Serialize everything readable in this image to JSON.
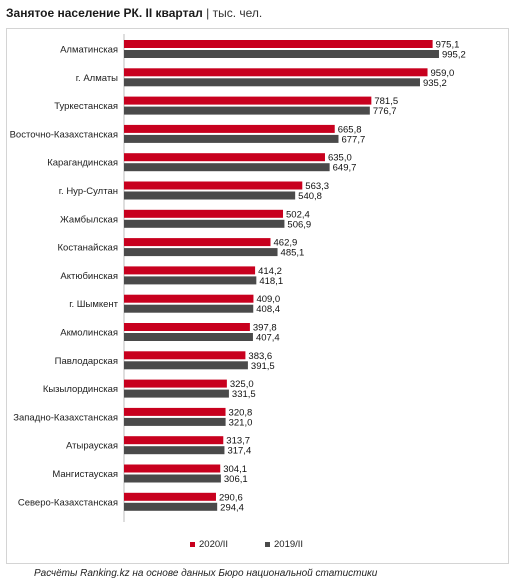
{
  "title": {
    "main": "Занятое население РК. II квартал",
    "separator": "|",
    "unit": "тыс. чел."
  },
  "source": "Расчёты Ranking.kz на основе данных Бюро национальной статистики",
  "colors": {
    "series_2020": "#c8001e",
    "series_2019": "#4a4a4a"
  },
  "chart_data": {
    "type": "bar",
    "orientation": "horizontal",
    "categories": [
      "Алматинская",
      "г. Алматы",
      "Туркестанская",
      "Восточно-Казахстанская",
      "Карагандинская",
      "г. Нур-Султан",
      "Жамбылская",
      "Костанайская",
      "Актюбинская",
      "г. Шымкент",
      "Акмолинская",
      "Павлодарская",
      "Кызылординская",
      "Западно-Казахстанская",
      "Атырауская",
      "Мангистауская",
      "Северо-Казахстанская"
    ],
    "series": [
      {
        "name": "2020/II",
        "values": [
          975.1,
          959.0,
          781.5,
          665.8,
          635.0,
          563.3,
          502.4,
          462.9,
          414.2,
          409.0,
          397.8,
          383.6,
          325.0,
          320.8,
          313.7,
          304.1,
          290.6
        ]
      },
      {
        "name": "2019/II",
        "values": [
          995.2,
          935.2,
          776.7,
          677.7,
          649.7,
          540.8,
          506.9,
          485.1,
          418.1,
          408.4,
          407.4,
          391.5,
          331.5,
          321.0,
          317.4,
          306.1,
          294.4
        ]
      }
    ],
    "value_labels": [
      [
        "975,1",
        "959,0",
        "781,5",
        "665,8",
        "635,0",
        "563,3",
        "502,4",
        "462,9",
        "414,2",
        "409,0",
        "397,8",
        "383,6",
        "325,0",
        "320,8",
        "313,7",
        "304,1",
        "290,6"
      ],
      [
        "995,2",
        "935,2",
        "776,7",
        "677,7",
        "649,7",
        "540,8",
        "506,9",
        "485,1",
        "418,1",
        "408,4",
        "407,4",
        "391,5",
        "331,5",
        "321,0",
        "317,4",
        "306,1",
        "294,4"
      ]
    ],
    "xlim": [
      0,
      1000
    ],
    "grid": false,
    "legend_position": "bottom"
  }
}
